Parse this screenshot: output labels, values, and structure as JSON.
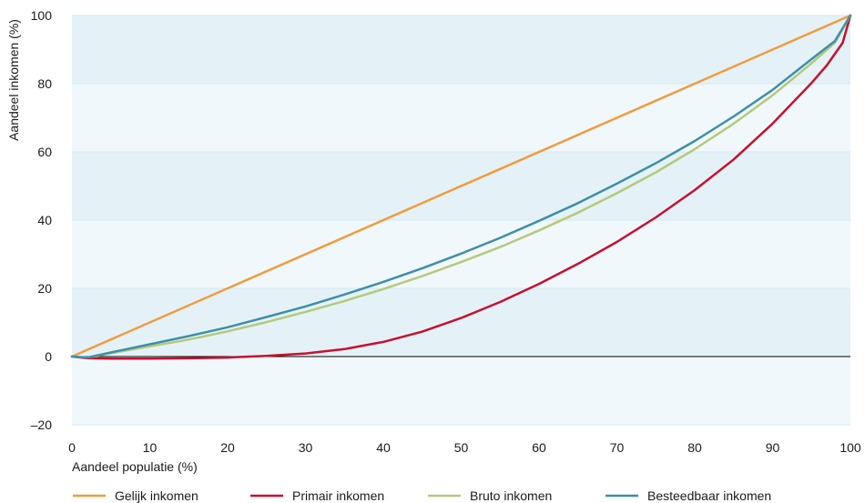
{
  "chart_data": {
    "type": "line",
    "xlabel": "Aandeel populatie (%)",
    "ylabel": "Aandeel inkomen (%)",
    "xlim": [
      0,
      100
    ],
    "ylim": [
      -20,
      100
    ],
    "xticks": [
      0,
      10,
      20,
      30,
      40,
      50,
      60,
      70,
      80,
      90,
      100
    ],
    "yticks": [
      -20,
      0,
      20,
      40,
      60,
      80,
      100
    ],
    "ytick_labels": [
      "–20",
      "0",
      "20",
      "40",
      "60",
      "80",
      "100"
    ],
    "grid": true,
    "background_bands": true,
    "legend_position": "bottom",
    "series": [
      {
        "name": "Gelijk inkomen",
        "color": "#f39a3d",
        "x": [
          0,
          100
        ],
        "y": [
          0,
          100
        ]
      },
      {
        "name": "Primair inkomen",
        "color": "#c8102e",
        "x": [
          0,
          2,
          5,
          10,
          15,
          20,
          25,
          30,
          35,
          40,
          45,
          50,
          55,
          60,
          65,
          70,
          75,
          80,
          85,
          90,
          95,
          97,
          99,
          100
        ],
        "y": [
          0,
          -0.5,
          -0.6,
          -0.6,
          -0.5,
          -0.3,
          0.2,
          0.9,
          2.2,
          4.3,
          7.3,
          11.3,
          16,
          21.3,
          27.2,
          33.6,
          40.8,
          48.8,
          57.8,
          68.3,
          80.2,
          85.5,
          92,
          100
        ]
      },
      {
        "name": "Bruto inkomen",
        "color": "#b5c97a",
        "x": [
          0,
          2,
          5,
          10,
          15,
          20,
          25,
          30,
          35,
          40,
          45,
          50,
          55,
          60,
          65,
          70,
          75,
          80,
          85,
          90,
          95,
          98,
          100
        ],
        "y": [
          0,
          -0.3,
          1,
          3,
          5,
          7.4,
          10.1,
          13.1,
          16.3,
          19.8,
          23.6,
          27.7,
          32.1,
          37,
          42.2,
          47.9,
          54,
          60.8,
          68.3,
          76.6,
          86,
          92,
          100
        ]
      },
      {
        "name": "Besteedbaar inkomen",
        "color": "#3e8fa8",
        "x": [
          0,
          2,
          5,
          10,
          15,
          20,
          25,
          30,
          35,
          40,
          45,
          50,
          55,
          60,
          65,
          70,
          75,
          80,
          85,
          90,
          95,
          98,
          100
        ],
        "y": [
          0,
          -0.3,
          1.2,
          3.6,
          6,
          8.6,
          11.6,
          14.7,
          18.2,
          21.9,
          25.9,
          30.2,
          34.8,
          39.8,
          45,
          50.7,
          56.7,
          63.2,
          70.4,
          78.2,
          87.2,
          92.5,
          100
        ]
      }
    ]
  }
}
